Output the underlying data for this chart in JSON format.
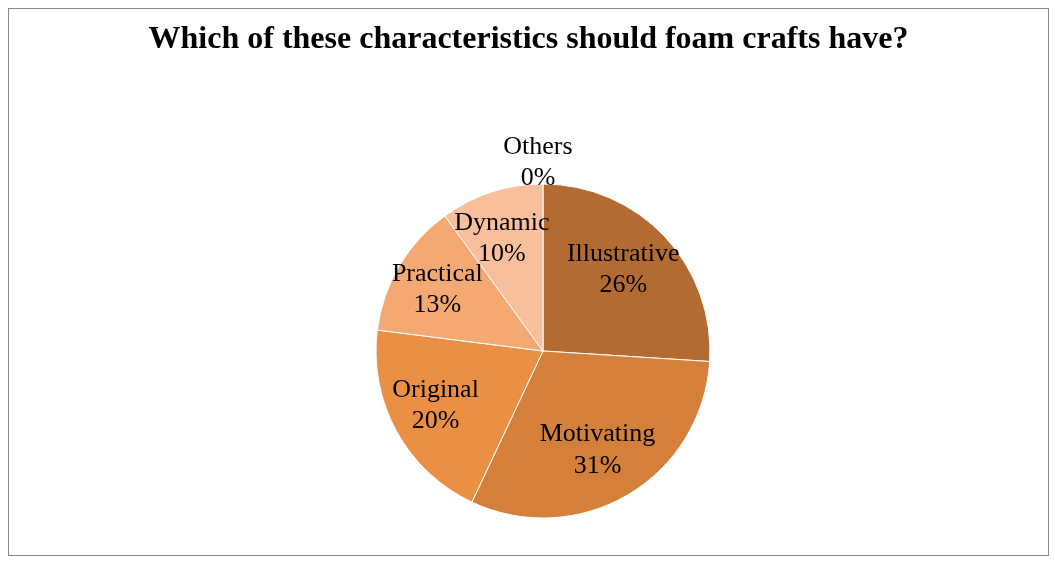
{
  "chart_data": {
    "type": "pie",
    "title": "Which of these characteristics should foam crafts have?",
    "categories": [
      "Illustrative",
      "Motivating",
      "Original",
      "Practical",
      "Dynamic",
      "Others"
    ],
    "values": [
      26,
      31,
      20,
      13,
      10,
      0
    ],
    "value_labels": [
      "26%",
      "31%",
      "20%",
      "13%",
      "10%",
      "0%"
    ],
    "colors": [
      "#b36b32",
      "#d47f3a",
      "#ea8f44",
      "#f4a872",
      "#f8bf9c",
      "#fbd5bd"
    ],
    "legend": false
  }
}
